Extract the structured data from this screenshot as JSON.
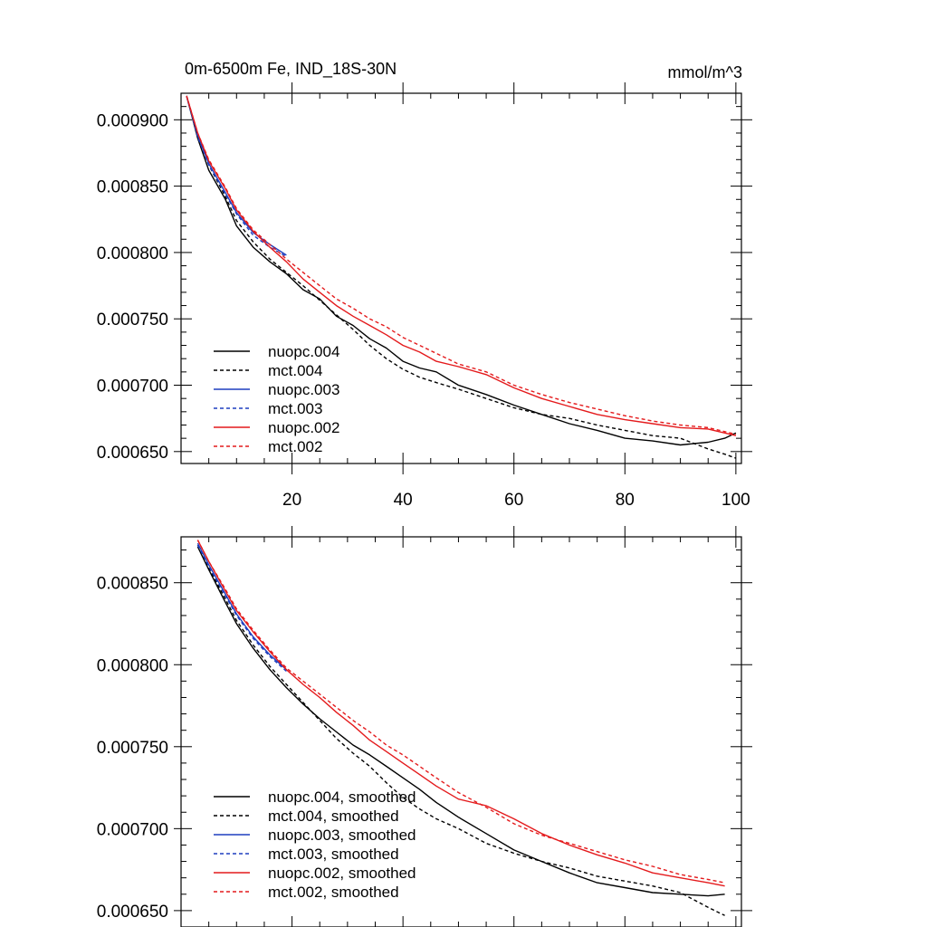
{
  "chart_data": [
    {
      "type": "line",
      "title_left": "0m-6500m Fe, IND_18S-30N",
      "title_right": "mmol/m^3",
      "xlim": [
        0,
        101
      ],
      "ylim": [
        0.000641,
        0.00092
      ],
      "x_ticks": [
        20,
        40,
        60,
        80,
        100
      ],
      "x_tick_labels": [
        "20",
        "40",
        "60",
        "80",
        "100"
      ],
      "y_ticks": [
        0.00065,
        0.0007,
        0.00075,
        0.0008,
        0.00085,
        0.0009
      ],
      "y_tick_labels": [
        "0.000650",
        "0.000700",
        "0.000750",
        "0.000800",
        "0.000850",
        "0.000900"
      ],
      "legend_position": "bottom-left",
      "legend": [
        "nuopc.004",
        "mct.004",
        "nuopc.003",
        "mct.003",
        "nuopc.002",
        "mct.002"
      ],
      "series": [
        {
          "name": "nuopc.004",
          "color": "#000000",
          "dash": "solid",
          "x": [
            1,
            3,
            5,
            8,
            10,
            13,
            16,
            19,
            22,
            25,
            28,
            31,
            34,
            37,
            40,
            43,
            46,
            50,
            55,
            60,
            65,
            70,
            75,
            80,
            85,
            90,
            95,
            98,
            100
          ],
          "y": [
            0.000918,
            0.000886,
            0.000862,
            0.00084,
            0.00082,
            0.000804,
            0.000793,
            0.000784,
            0.000772,
            0.000765,
            0.000752,
            0.000745,
            0.000735,
            0.000728,
            0.000718,
            0.000713,
            0.00071,
            0.0007,
            0.000693,
            0.000685,
            0.000678,
            0.000671,
            0.000666,
            0.00066,
            0.000658,
            0.000655,
            0.000657,
            0.00066,
            0.000664
          ]
        },
        {
          "name": "mct.004",
          "color": "#000000",
          "dash": "dashed",
          "x": [
            1,
            3,
            5,
            8,
            10,
            13,
            16,
            19,
            22,
            25,
            28,
            31,
            34,
            37,
            40,
            43,
            46,
            50,
            55,
            60,
            65,
            70,
            75,
            80,
            85,
            90,
            95,
            98,
            100
          ],
          "y": [
            0.000918,
            0.000888,
            0.000866,
            0.000842,
            0.000824,
            0.000808,
            0.000795,
            0.000785,
            0.000775,
            0.000764,
            0.000753,
            0.000742,
            0.00073,
            0.00072,
            0.000712,
            0.000706,
            0.000702,
            0.000697,
            0.00069,
            0.000683,
            0.000678,
            0.000675,
            0.00067,
            0.000666,
            0.000662,
            0.00066,
            0.000652,
            0.000648,
            0.000645
          ]
        },
        {
          "name": "nuopc.003",
          "color": "#1f3fbf",
          "dash": "solid",
          "x": [
            1,
            3,
            5,
            8,
            10,
            13,
            16,
            19
          ],
          "y": [
            0.000918,
            0.000888,
            0.000867,
            0.000845,
            0.00083,
            0.000815,
            0.000806,
            0.000798
          ]
        },
        {
          "name": "mct.003",
          "color": "#1f3fbf",
          "dash": "dashed",
          "x": [
            1,
            3,
            5,
            8,
            10,
            13,
            16,
            19
          ],
          "y": [
            0.000918,
            0.000887,
            0.000866,
            0.000844,
            0.000829,
            0.000813,
            0.000804,
            0.000797
          ]
        },
        {
          "name": "nuopc.002",
          "color": "#e41a1c",
          "dash": "solid",
          "x": [
            1,
            3,
            5,
            8,
            10,
            13,
            16,
            19,
            22,
            25,
            28,
            31,
            34,
            37,
            40,
            43,
            46,
            50,
            55,
            60,
            65,
            70,
            75,
            80,
            85,
            90,
            95,
            98,
            100
          ],
          "y": [
            0.000918,
            0.00089,
            0.000869,
            0.000848,
            0.000832,
            0.000816,
            0.000804,
            0.000793,
            0.00078,
            0.00077,
            0.00076,
            0.000752,
            0.000745,
            0.000738,
            0.00073,
            0.000725,
            0.000718,
            0.000714,
            0.000708,
            0.000698,
            0.00069,
            0.000684,
            0.000678,
            0.000674,
            0.000671,
            0.000668,
            0.000667,
            0.000664,
            0.000662
          ]
        },
        {
          "name": "mct.002",
          "color": "#e41a1c",
          "dash": "dashed",
          "x": [
            1,
            3,
            5,
            8,
            10,
            13,
            16,
            19,
            22,
            25,
            28,
            31,
            34,
            37,
            40,
            43,
            46,
            50,
            55,
            60,
            65,
            70,
            75,
            80,
            85,
            90,
            95,
            98,
            100
          ],
          "y": [
            0.000918,
            0.00089,
            0.00087,
            0.000849,
            0.000833,
            0.000817,
            0.000806,
            0.000795,
            0.000785,
            0.000775,
            0.000765,
            0.000758,
            0.00075,
            0.000744,
            0.000736,
            0.00073,
            0.000724,
            0.000716,
            0.00071,
            0.0007,
            0.000693,
            0.000687,
            0.000682,
            0.000677,
            0.000673,
            0.00067,
            0.000668,
            0.000665,
            0.000663
          ]
        }
      ]
    },
    {
      "type": "line",
      "xlim": [
        0,
        101
      ],
      "ylim": [
        0.00064,
        0.000878
      ],
      "x_ticks": [
        20,
        40,
        60,
        80,
        100
      ],
      "y_ticks": [
        0.00065,
        0.0007,
        0.00075,
        0.0008,
        0.00085
      ],
      "y_tick_labels": [
        "0.000650",
        "0.000700",
        "0.000750",
        "0.000800",
        "0.000850"
      ],
      "legend_position": "bottom-left",
      "legend": [
        "nuopc.004, smoothed",
        "mct.004, smoothed",
        "nuopc.003, smoothed",
        "mct.003, smoothed",
        "nuopc.002, smoothed",
        "mct.002, smoothed"
      ],
      "series": [
        {
          "name": "nuopc.004, smoothed",
          "color": "#000000",
          "dash": "solid",
          "x": [
            3,
            5,
            8,
            10,
            13,
            16,
            19,
            22,
            25,
            28,
            31,
            34,
            37,
            40,
            43,
            46,
            50,
            55,
            60,
            65,
            70,
            75,
            80,
            85,
            90,
            95,
            98
          ],
          "y": [
            0.000872,
            0.000858,
            0.000838,
            0.000825,
            0.00081,
            0.000797,
            0.000786,
            0.000776,
            0.000767,
            0.000759,
            0.000751,
            0.000745,
            0.000738,
            0.000731,
            0.000724,
            0.000716,
            0.000707,
            0.000697,
            0.000687,
            0.00068,
            0.000673,
            0.000667,
            0.000664,
            0.000661,
            0.00066,
            0.000659,
            0.00066
          ]
        },
        {
          "name": "mct.004, smoothed",
          "color": "#000000",
          "dash": "dashed",
          "x": [
            3,
            5,
            8,
            10,
            13,
            16,
            19,
            22,
            25,
            28,
            31,
            34,
            37,
            40,
            43,
            46,
            50,
            55,
            60,
            65,
            70,
            75,
            80,
            85,
            90,
            95,
            98
          ],
          "y": [
            0.000873,
            0.000859,
            0.00084,
            0.000827,
            0.000812,
            0.000799,
            0.000788,
            0.000777,
            0.000766,
            0.000755,
            0.000746,
            0.000738,
            0.000728,
            0.000719,
            0.000712,
            0.000706,
            0.0007,
            0.000691,
            0.000685,
            0.00068,
            0.000676,
            0.000671,
            0.000668,
            0.000665,
            0.000661,
            0.000652,
            0.000647
          ]
        },
        {
          "name": "nuopc.003, smoothed",
          "color": "#1f3fbf",
          "dash": "solid",
          "x": [
            3,
            5,
            8,
            10,
            13,
            16,
            19
          ],
          "y": [
            0.000874,
            0.000861,
            0.000843,
            0.000831,
            0.000817,
            0.000806,
            0.000797
          ]
        },
        {
          "name": "mct.003, smoothed",
          "color": "#1f3fbf",
          "dash": "dashed",
          "x": [
            3,
            5,
            8,
            10,
            13,
            16,
            19
          ],
          "y": [
            0.000873,
            0.00086,
            0.000842,
            0.00083,
            0.000816,
            0.000805,
            0.000796
          ]
        },
        {
          "name": "nuopc.002, smoothed",
          "color": "#e41a1c",
          "dash": "solid",
          "x": [
            3,
            5,
            8,
            10,
            13,
            16,
            19,
            22,
            25,
            28,
            31,
            34,
            37,
            40,
            43,
            46,
            50,
            55,
            60,
            65,
            70,
            75,
            80,
            85,
            90,
            95,
            98
          ],
          "y": [
            0.000876,
            0.000863,
            0.000845,
            0.000833,
            0.00082,
            0.000808,
            0.000797,
            0.000788,
            0.00078,
            0.000771,
            0.000763,
            0.000754,
            0.000747,
            0.00074,
            0.000733,
            0.000726,
            0.000718,
            0.000714,
            0.000706,
            0.000697,
            0.00069,
            0.000684,
            0.000679,
            0.000673,
            0.00067,
            0.000667,
            0.000665
          ]
        },
        {
          "name": "mct.002, smoothed",
          "color": "#e41a1c",
          "dash": "dashed",
          "x": [
            3,
            5,
            8,
            10,
            13,
            16,
            19,
            22,
            25,
            28,
            31,
            34,
            37,
            40,
            43,
            46,
            50,
            55,
            60,
            65,
            70,
            75,
            80,
            85,
            90,
            95,
            98
          ],
          "y": [
            0.000876,
            0.000863,
            0.000846,
            0.000834,
            0.000821,
            0.000809,
            0.000798,
            0.00079,
            0.000782,
            0.000774,
            0.000766,
            0.000759,
            0.000751,
            0.000745,
            0.000738,
            0.000731,
            0.000722,
            0.000713,
            0.000703,
            0.000696,
            0.000691,
            0.000686,
            0.000681,
            0.000677,
            0.000672,
            0.000669,
            0.000667
          ]
        }
      ]
    }
  ]
}
